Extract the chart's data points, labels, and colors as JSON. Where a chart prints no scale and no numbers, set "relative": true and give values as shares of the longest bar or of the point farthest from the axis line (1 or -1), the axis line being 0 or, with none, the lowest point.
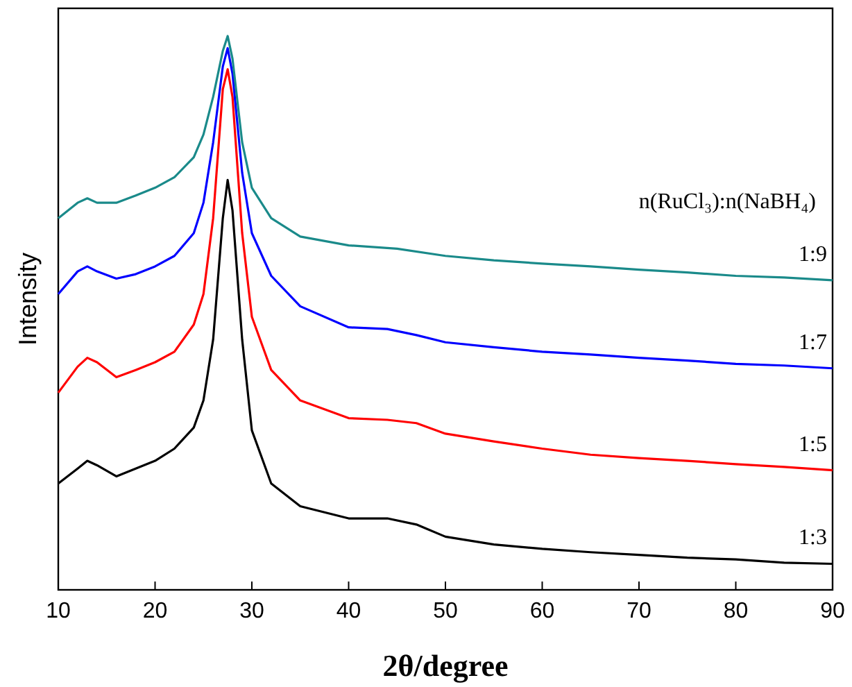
{
  "chart_data": {
    "type": "line",
    "relative": true,
    "xlabel": "2θ/degree",
    "ylabel": "Intensity",
    "legend_title": "n(RuCl₃):n(NaBH₄)",
    "xlim": [
      10,
      90
    ],
    "xticks": [
      10,
      20,
      30,
      40,
      50,
      60,
      70,
      80,
      90
    ],
    "tick_labels": "x",
    "grid": false,
    "marker": "none",
    "line_style": "solid",
    "series": [
      {
        "name": "1:3",
        "color": "#000000",
        "x": [
          10,
          12,
          13,
          14,
          16,
          18,
          20,
          22,
          24,
          25,
          26,
          27,
          27.5,
          28,
          29,
          30,
          32,
          35,
          40,
          44,
          47,
          50,
          55,
          60,
          65,
          70,
          75,
          80,
          85,
          90
        ],
        "values": [
          0.192,
          0.219,
          0.233,
          0.225,
          0.205,
          0.219,
          0.233,
          0.255,
          0.293,
          0.342,
          0.452,
          0.671,
          0.74,
          0.685,
          0.452,
          0.288,
          0.192,
          0.151,
          0.129,
          0.129,
          0.118,
          0.096,
          0.082,
          0.074,
          0.068,
          0.063,
          0.058,
          0.055,
          0.049,
          0.047
        ]
      },
      {
        "name": "1:5",
        "color": "#ff0000",
        "x": [
          10,
          12,
          13,
          14,
          16,
          18,
          20,
          22,
          24,
          25,
          26,
          27,
          27.5,
          28,
          29,
          30,
          32,
          35,
          40,
          44,
          47,
          50,
          55,
          60,
          65,
          70,
          75,
          80,
          85,
          90
        ],
        "values": [
          0.356,
          0.403,
          0.419,
          0.411,
          0.384,
          0.397,
          0.411,
          0.43,
          0.479,
          0.534,
          0.671,
          0.904,
          0.94,
          0.89,
          0.644,
          0.493,
          0.397,
          0.342,
          0.31,
          0.307,
          0.301,
          0.282,
          0.268,
          0.255,
          0.244,
          0.238,
          0.233,
          0.227,
          0.222,
          0.216
        ]
      },
      {
        "name": "1:7",
        "color": "#0000ff",
        "x": [
          10,
          12,
          13,
          14,
          16,
          18,
          20,
          22,
          24,
          25,
          26,
          27,
          27.5,
          28,
          29,
          30,
          32,
          35,
          40,
          44,
          47,
          50,
          55,
          60,
          65,
          70,
          75,
          80,
          85,
          90
        ],
        "values": [
          0.534,
          0.575,
          0.584,
          0.575,
          0.562,
          0.57,
          0.584,
          0.603,
          0.644,
          0.699,
          0.808,
          0.945,
          0.978,
          0.932,
          0.753,
          0.644,
          0.567,
          0.512,
          0.474,
          0.471,
          0.46,
          0.447,
          0.438,
          0.43,
          0.425,
          0.419,
          0.414,
          0.408,
          0.405,
          0.4
        ]
      },
      {
        "name": "1:9",
        "color": "#1a8a8a",
        "x": [
          10,
          12,
          13,
          14,
          16,
          18,
          20,
          22,
          24,
          25,
          26,
          27,
          27.5,
          28,
          29,
          30,
          32,
          35,
          40,
          45,
          50,
          55,
          60,
          65,
          70,
          75,
          80,
          85,
          90
        ],
        "values": [
          0.671,
          0.699,
          0.707,
          0.699,
          0.699,
          0.712,
          0.726,
          0.745,
          0.781,
          0.822,
          0.89,
          0.973,
          1,
          0.959,
          0.808,
          0.726,
          0.671,
          0.638,
          0.622,
          0.616,
          0.603,
          0.595,
          0.589,
          0.584,
          0.578,
          0.573,
          0.567,
          0.564,
          0.559
        ]
      }
    ]
  }
}
